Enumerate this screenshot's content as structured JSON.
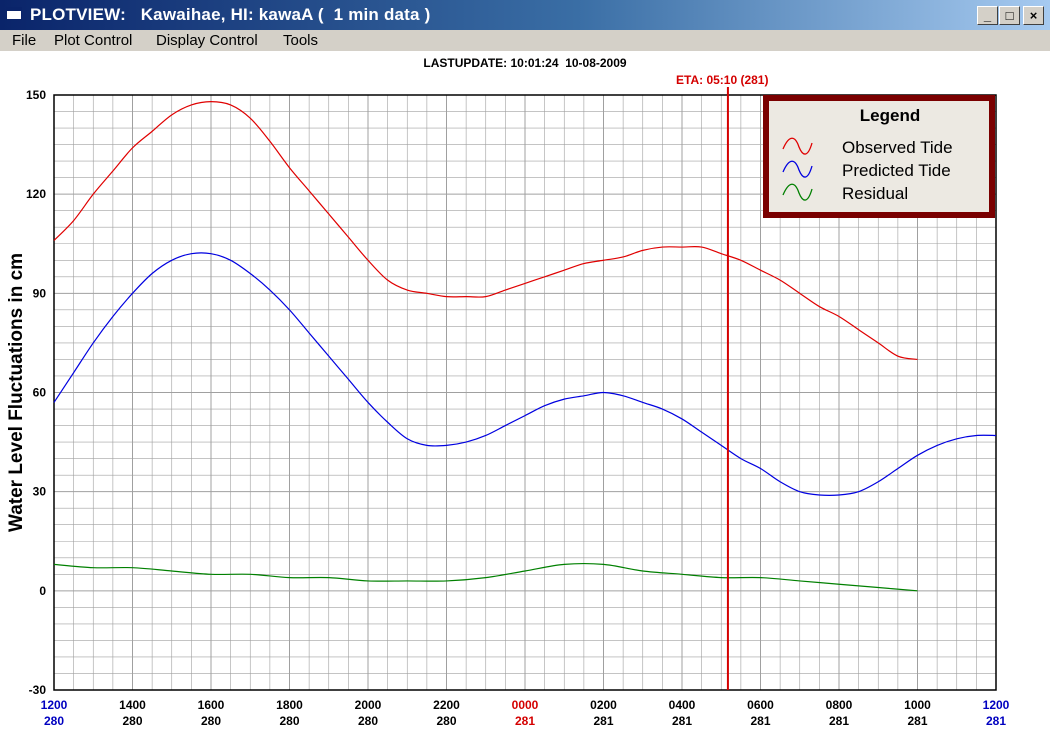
{
  "window": {
    "title": "PLOTVIEW:   Kawaihae, HI: kawaA (  1 min data )",
    "buttons": {
      "minimize": "_",
      "maximize": "□",
      "close": "×"
    }
  },
  "menu": {
    "items": [
      "File",
      "Plot Control",
      "Display Control",
      "Tools"
    ]
  },
  "header": {
    "lastupdate": "LASTUPDATE: 10:01:24  10-08-2009",
    "eta": "ETA: 05:10 (281)"
  },
  "colors": {
    "observed": "#e00000",
    "predicted": "#0000e0",
    "residual": "#008000",
    "eta_line": "#d40000",
    "grid": "#a0a0a0"
  },
  "legend": {
    "title": "Legend",
    "entries": [
      {
        "label": "Observed Tide",
        "color": "#e00000"
      },
      {
        "label": "Predicted Tide",
        "color": "#0000e0"
      },
      {
        "label": "Residual",
        "color": "#008000"
      }
    ]
  },
  "chart_data": {
    "type": "line",
    "ylabel": "Water Level Fluctuations in cm",
    "ylim": [
      -30,
      150
    ],
    "y_ticks": [
      150,
      120,
      90,
      60,
      30,
      0,
      -30
    ],
    "xlim": [
      12,
      36
    ],
    "x_ticks": [
      {
        "time": "1200",
        "day": "280",
        "color": "#0000c0"
      },
      {
        "time": "1400",
        "day": "280",
        "color": "#000000"
      },
      {
        "time": "1600",
        "day": "280",
        "color": "#000000"
      },
      {
        "time": "1800",
        "day": "280",
        "color": "#000000"
      },
      {
        "time": "2000",
        "day": "280",
        "color": "#000000"
      },
      {
        "time": "2200",
        "day": "280",
        "color": "#000000"
      },
      {
        "time": "0000",
        "day": "281",
        "color": "#d40000"
      },
      {
        "time": "0200",
        "day": "281",
        "color": "#000000"
      },
      {
        "time": "0400",
        "day": "281",
        "color": "#000000"
      },
      {
        "time": "0600",
        "day": "281",
        "color": "#000000"
      },
      {
        "time": "0800",
        "day": "281",
        "color": "#000000"
      },
      {
        "time": "1000",
        "day": "281",
        "color": "#000000"
      },
      {
        "time": "1200",
        "day": "281",
        "color": "#0000c0"
      }
    ],
    "eta_x": 29.17,
    "series": [
      {
        "name": "Observed Tide",
        "color": "#e00000",
        "x": [
          12,
          12.5,
          13,
          13.5,
          14,
          14.5,
          15,
          15.5,
          16,
          16.5,
          17,
          17.5,
          18,
          18.5,
          19,
          19.5,
          20,
          20.5,
          21,
          21.5,
          22,
          22.5,
          23,
          23.5,
          24,
          24.5,
          25,
          25.5,
          26,
          26.5,
          27,
          27.5,
          28,
          28.5,
          29,
          29.5,
          30,
          30.5,
          31,
          31.5,
          32,
          32.5,
          33,
          33.5,
          34
        ],
        "values": [
          106,
          112,
          120,
          127,
          134,
          139,
          144,
          147,
          148,
          147,
          143,
          136,
          128,
          121,
          114,
          107,
          100,
          94,
          91,
          90,
          89,
          89,
          89,
          91,
          93,
          95,
          97,
          99,
          100,
          101,
          103,
          104,
          104,
          104,
          102,
          100,
          97,
          94,
          90,
          86,
          83,
          79,
          75,
          71,
          70
        ]
      },
      {
        "name": "Predicted Tide",
        "color": "#0000e0",
        "x": [
          12,
          12.5,
          13,
          13.5,
          14,
          14.5,
          15,
          15.5,
          16,
          16.5,
          17,
          17.5,
          18,
          18.5,
          19,
          19.5,
          20,
          20.5,
          21,
          21.5,
          22,
          22.5,
          23,
          23.5,
          24,
          24.5,
          25,
          25.5,
          26,
          26.5,
          27,
          27.5,
          28,
          28.5,
          29,
          29.5,
          30,
          30.5,
          31,
          31.5,
          32,
          32.5,
          33,
          33.5,
          34,
          34.5,
          35,
          35.5,
          36
        ],
        "values": [
          57,
          66,
          75,
          83,
          90,
          96,
          100,
          102,
          102,
          100,
          96,
          91,
          85,
          78,
          71,
          64,
          57,
          51,
          46,
          44,
          44,
          45,
          47,
          50,
          53,
          56,
          58,
          59,
          60,
          59,
          57,
          55,
          52,
          48,
          44,
          40,
          37,
          33,
          30,
          29,
          29,
          30,
          33,
          37,
          41,
          44,
          46,
          47,
          47
        ]
      },
      {
        "name": "Residual",
        "color": "#008000",
        "x": [
          12,
          13,
          14,
          15,
          16,
          17,
          18,
          19,
          20,
          21,
          22,
          23,
          24,
          25,
          26,
          27,
          28,
          29,
          30,
          31,
          32,
          33,
          34
        ],
        "values": [
          8,
          7,
          7,
          6,
          5,
          5,
          4,
          4,
          3,
          3,
          3,
          4,
          6,
          8,
          8,
          6,
          5,
          4,
          4,
          3,
          2,
          1,
          0
        ]
      }
    ]
  }
}
